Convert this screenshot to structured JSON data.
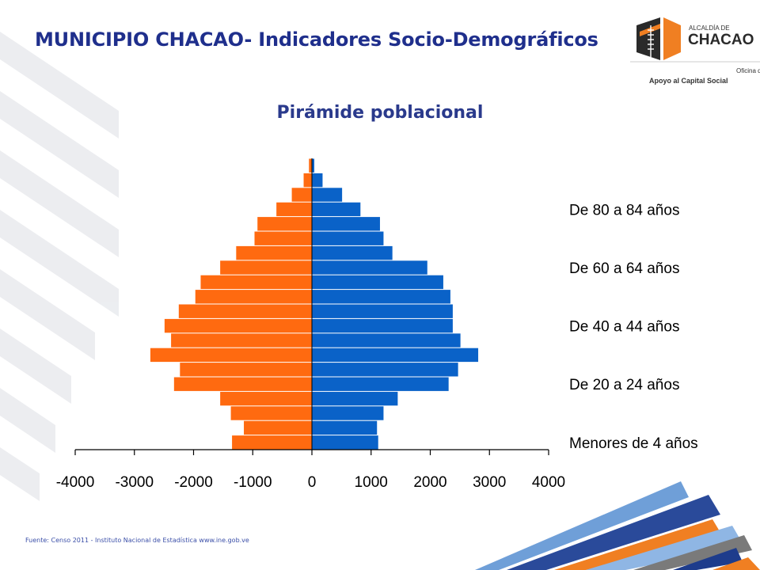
{
  "header": {
    "title": "MUNICIPIO CHACAO- Indicadores Socio-Demográficos"
  },
  "logo": {
    "line1": "ALCALDÍA DE",
    "line2": "CHACAO",
    "line3": "Oficina de",
    "line4": "Apoyo al Capital Social"
  },
  "footer": {
    "source": "Fuente: Censo 2011 - Instituto Nacional de Estadística www.ine.gob.ve"
  },
  "colors": {
    "left_series": "#ff6a10",
    "right_series": "#0a62c8",
    "title": "#1f2f8c",
    "axis": "#000000"
  },
  "chart_data": {
    "type": "bar",
    "subtype": "population-pyramid",
    "title": "Pirámide poblacional",
    "xlim": [
      -4000,
      4000
    ],
    "xticks": [
      "-4000",
      "-3000",
      "-2000",
      "-1000",
      "0",
      "1000",
      "2000",
      "3000",
      "4000"
    ],
    "category_labels": [
      "Menores de 4 años",
      "De 20 a 24 años",
      "De 40 a 44 años",
      "De 60 a 64 años",
      "De 80 a 84 años"
    ],
    "category_label_groups": [
      0,
      4,
      8,
      12,
      16
    ],
    "n_groups": 20,
    "left_values": [
      -1350,
      -1150,
      -1370,
      -1550,
      -2330,
      -2230,
      -2730,
      -2380,
      -2490,
      -2250,
      -1970,
      -1880,
      -1550,
      -1280,
      -970,
      -920,
      -600,
      -340,
      -140,
      -50
    ],
    "right_values": [
      1120,
      1100,
      1210,
      1450,
      2310,
      2470,
      2810,
      2510,
      2380,
      2380,
      2340,
      2220,
      1950,
      1360,
      1210,
      1150,
      820,
      510,
      180,
      40
    ]
  }
}
